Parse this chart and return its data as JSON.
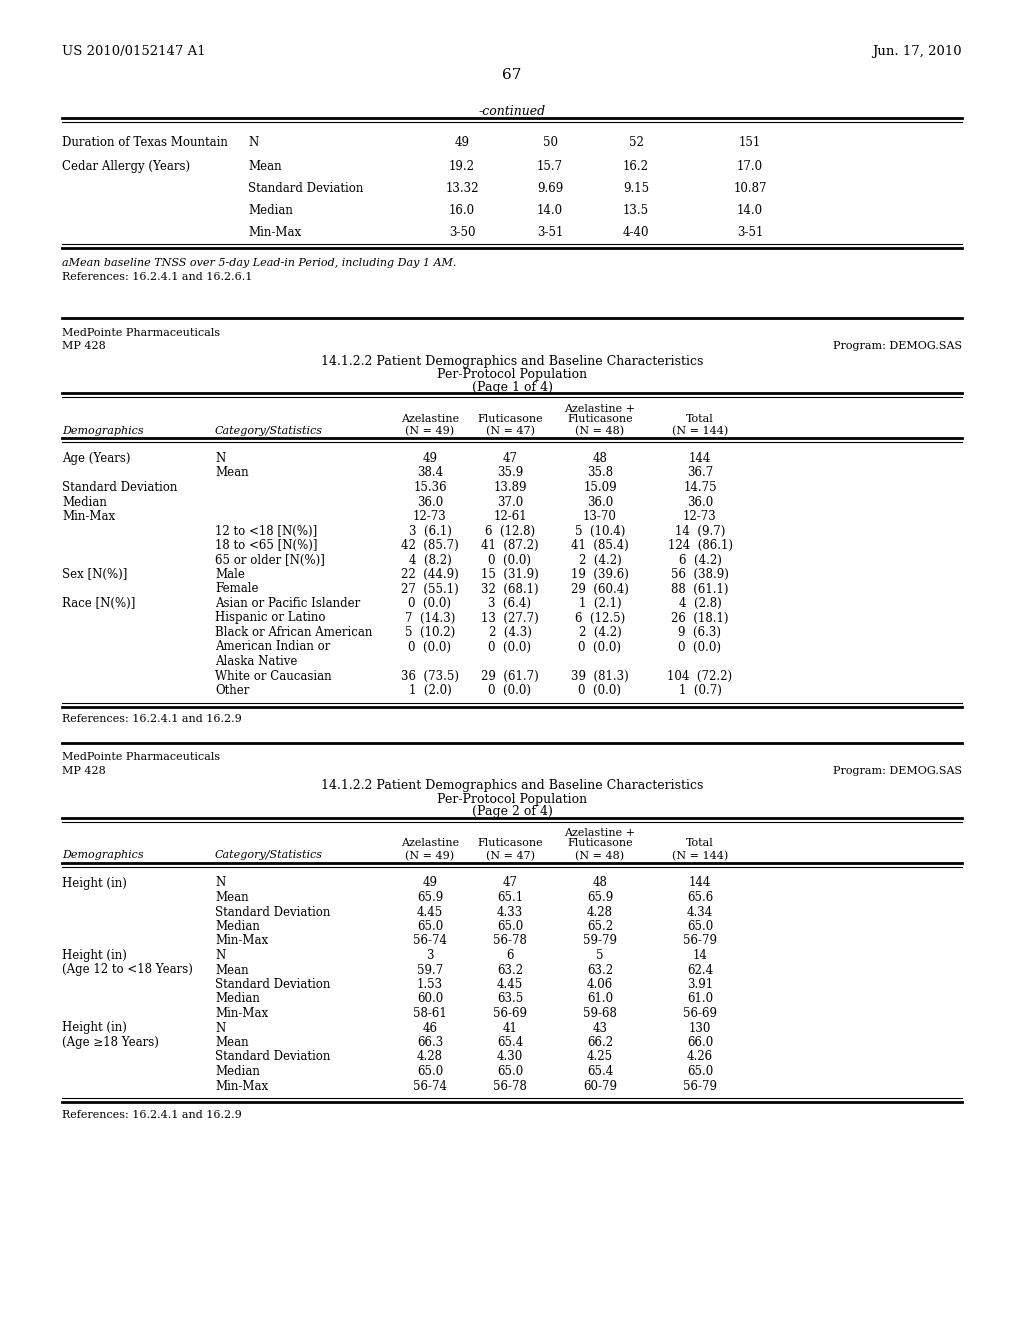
{
  "header_left": "US 2010/0152147 A1",
  "header_right": "Jun. 17, 2010",
  "page_num": "67",
  "continued_label": "-continued",
  "top_table_rows": [
    [
      "Duration of Texas Mountain",
      "N",
      "49",
      "50",
      "52",
      "151"
    ],
    [
      "Cedar Allergy (Years)",
      "Mean",
      "19.2",
      "15.7",
      "16.2",
      "17.0"
    ],
    [
      "",
      "Standard Deviation",
      "13.32",
      "9.69",
      "9.15",
      "10.87"
    ],
    [
      "",
      "Median",
      "16.0",
      "14.0",
      "13.5",
      "14.0"
    ],
    [
      "",
      "Min-Max",
      "3-50",
      "3-51",
      "4-40",
      "3-51"
    ]
  ],
  "footnote1": "aMean baseline TNSS over 5-day Lead-in Period, including Day 1 AM.",
  "footnote2": "References: 16.2.4.1 and 16.2.6.1",
  "t1_company": "MedPointe Pharmaceuticals",
  "t1_study": "MP 428",
  "t1_program": "Program: DEMOG.SAS",
  "t1_title1": "14.1.2.2 Patient Demographics and Baseline Characteristics",
  "t1_title2": "Per-Protocol Population",
  "t1_title3": "(Page 1 of 4)",
  "t1_rows": [
    [
      "Age (Years)",
      "N",
      "49",
      "47",
      "48",
      "144"
    ],
    [
      "",
      "Mean",
      "38.4",
      "35.9",
      "35.8",
      "36.7"
    ],
    [
      "Standard Deviation",
      "",
      "15.36",
      "13.89",
      "15.09",
      "14.75"
    ],
    [
      "Median",
      "",
      "36.0",
      "37.0",
      "36.0",
      "36.0"
    ],
    [
      "Min-Max",
      "",
      "12-73",
      "12-61",
      "13-70",
      "12-73"
    ],
    [
      "",
      "12 to <18 [N(%)]",
      "3  (6.1)",
      "6  (12.8)",
      "5  (10.4)",
      "14  (9.7)"
    ],
    [
      "",
      "18 to <65 [N(%)]",
      "42  (85.7)",
      "41  (87.2)",
      "41  (85.4)",
      "124  (86.1)"
    ],
    [
      "",
      "65 or older [N(%)]",
      "4  (8.2)",
      "0  (0.0)",
      "2  (4.2)",
      "6  (4.2)"
    ],
    [
      "Sex [N(%)]",
      "Male",
      "22  (44.9)",
      "15  (31.9)",
      "19  (39.6)",
      "56  (38.9)"
    ],
    [
      "",
      "Female",
      "27  (55.1)",
      "32  (68.1)",
      "29  (60.4)",
      "88  (61.1)"
    ],
    [
      "Race [N(%)]",
      "Asian or Pacific Islander",
      "0  (0.0)",
      "3  (6.4)",
      "1  (2.1)",
      "4  (2.8)"
    ],
    [
      "",
      "Hispanic or Latino",
      "7  (14.3)",
      "13  (27.7)",
      "6  (12.5)",
      "26  (18.1)"
    ],
    [
      "",
      "Black or African American",
      "5  (10.2)",
      "2  (4.3)",
      "2  (4.2)",
      "9  (6.3)"
    ],
    [
      "",
      "American Indian or",
      "0  (0.0)",
      "0  (0.0)",
      "0  (0.0)",
      "0  (0.0)"
    ],
    [
      "",
      "Alaska Native",
      "",
      "",
      "",
      ""
    ],
    [
      "",
      "White or Caucasian",
      "36  (73.5)",
      "29  (61.7)",
      "39  (81.3)",
      "104  (72.2)"
    ],
    [
      "",
      "Other",
      "1  (2.0)",
      "0  (0.0)",
      "0  (0.0)",
      "1  (0.7)"
    ]
  ],
  "ref1": "References: 16.2.4.1 and 16.2.9",
  "t2_company": "MedPointe Pharmaceuticals",
  "t2_study": "MP 428",
  "t2_program": "Program: DEMOG.SAS",
  "t2_title1": "14.1.2.2 Patient Demographics and Baseline Characteristics",
  "t2_title2": "Per-Protocol Population",
  "t2_title3": "(Page 2 of 4)",
  "t2_rows": [
    [
      "Height (in)",
      "N",
      "49",
      "47",
      "48",
      "144"
    ],
    [
      "",
      "Mean",
      "65.9",
      "65.1",
      "65.9",
      "65.6"
    ],
    [
      "",
      "Standard Deviation",
      "4.45",
      "4.33",
      "4.28",
      "4.34"
    ],
    [
      "",
      "Median",
      "65.0",
      "65.0",
      "65.2",
      "65.0"
    ],
    [
      "",
      "Min-Max",
      "56-74",
      "56-78",
      "59-79",
      "56-79"
    ],
    [
      "Height (in)",
      "N",
      "3",
      "6",
      "5",
      "14"
    ],
    [
      "(Age 12 to <18 Years)",
      "Mean",
      "59.7",
      "63.2",
      "63.2",
      "62.4"
    ],
    [
      "",
      "Standard Deviation",
      "1.53",
      "4.45",
      "4.06",
      "3.91"
    ],
    [
      "",
      "Median",
      "60.0",
      "63.5",
      "61.0",
      "61.0"
    ],
    [
      "",
      "Min-Max",
      "58-61",
      "56-69",
      "59-68",
      "56-69"
    ],
    [
      "Height (in)",
      "N",
      "46",
      "41",
      "43",
      "130"
    ],
    [
      "(Age ≥18 Years)",
      "Mean",
      "66.3",
      "65.4",
      "66.2",
      "66.0"
    ],
    [
      "",
      "Standard Deviation",
      "4.28",
      "4.30",
      "4.25",
      "4.26"
    ],
    [
      "",
      "Median",
      "65.0",
      "65.0",
      "65.4",
      "65.0"
    ],
    [
      "",
      "Min-Max",
      "56-74",
      "56-78",
      "60-79",
      "56-79"
    ]
  ],
  "ref2": "References: 16.2.4.1 and 16.2.9"
}
